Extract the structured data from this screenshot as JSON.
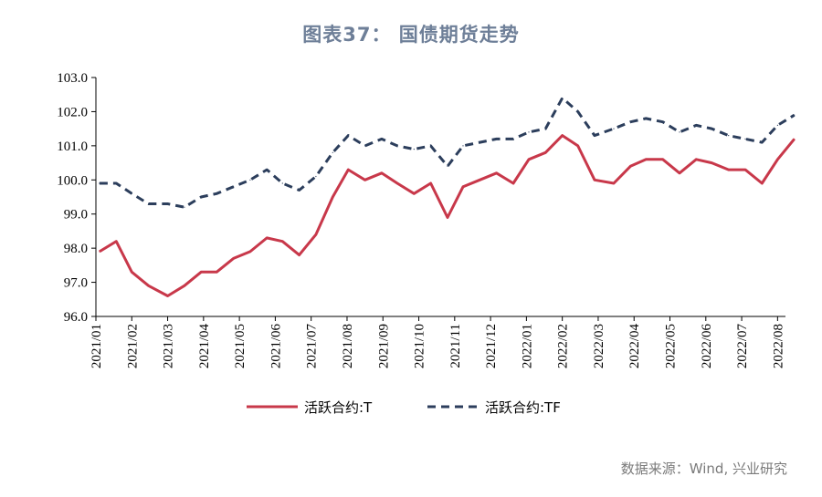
{
  "title": "图表37： 国债期货走势",
  "source": "数据来源：Wind, 兴业研究",
  "chart_data": {
    "type": "line",
    "title": "图表37： 国债期货走势",
    "ylim": [
      96.0,
      103.0
    ],
    "yticks": [
      "96.0",
      "97.0",
      "98.0",
      "99.0",
      "100.0",
      "101.0",
      "102.0",
      "103.0"
    ],
    "xticks": [
      "2021/01",
      "2021/02",
      "2021/03",
      "2021/04",
      "2021/05",
      "2021/06",
      "2021/07",
      "2021/08",
      "2021/09",
      "2021/10",
      "2021/11",
      "2021/12",
      "2022/01",
      "2022/02",
      "2022/03",
      "2022/04",
      "2022/05",
      "2022/06",
      "2022/07",
      "2022/08"
    ],
    "x": [
      "2021/01/04",
      "2021/01/18",
      "2021/02/01",
      "2021/02/15",
      "2021/03/01",
      "2021/03/15",
      "2021/03/29",
      "2021/04/12",
      "2021/04/26",
      "2021/05/10",
      "2021/05/24",
      "2021/06/07",
      "2021/06/21",
      "2021/07/05",
      "2021/07/19",
      "2021/08/02",
      "2021/08/16",
      "2021/08/30",
      "2021/09/13",
      "2021/09/27",
      "2021/10/11",
      "2021/10/25",
      "2021/11/08",
      "2021/11/22",
      "2021/12/06",
      "2021/12/20",
      "2022/01/03",
      "2022/01/17",
      "2022/01/31",
      "2022/02/14",
      "2022/02/28",
      "2022/03/14",
      "2022/03/28",
      "2022/04/11",
      "2022/04/25",
      "2022/05/09",
      "2022/05/23",
      "2022/06/06",
      "2022/06/20",
      "2022/07/04",
      "2022/07/18",
      "2022/08/01",
      "2022/08/15"
    ],
    "series": [
      {
        "name": "活跃合约:T",
        "color": "#c8384a",
        "dash": "solid",
        "values": [
          97.9,
          98.2,
          97.3,
          96.9,
          96.6,
          96.9,
          97.3,
          97.3,
          97.7,
          97.9,
          98.3,
          98.2,
          97.8,
          98.4,
          99.5,
          100.3,
          100.0,
          100.2,
          99.9,
          99.6,
          99.9,
          98.9,
          99.8,
          100.0,
          100.2,
          99.9,
          100.6,
          100.8,
          101.3,
          101.0,
          100.0,
          99.9,
          100.4,
          100.6,
          100.6,
          100.2,
          100.6,
          100.5,
          100.3,
          100.3,
          99.9,
          100.6,
          101.2
        ]
      },
      {
        "name": "活跃合约:TF",
        "color": "#2c3e5c",
        "dash": "dashed",
        "values": [
          99.9,
          99.9,
          99.6,
          99.3,
          99.3,
          99.2,
          99.5,
          99.6,
          99.8,
          100.0,
          100.3,
          99.9,
          99.7,
          100.1,
          100.8,
          101.3,
          101.0,
          101.2,
          101.0,
          100.9,
          101.0,
          100.4,
          101.0,
          101.1,
          101.2,
          101.2,
          101.4,
          101.5,
          102.4,
          102.0,
          101.3,
          101.5,
          101.7,
          101.8,
          101.7,
          101.4,
          101.6,
          101.5,
          101.3,
          101.2,
          101.1,
          101.6,
          101.9
        ]
      }
    ],
    "legend": {
      "position": "bottom",
      "entries": [
        "活跃合约:T",
        "活跃合约:TF"
      ]
    },
    "grid": false
  }
}
